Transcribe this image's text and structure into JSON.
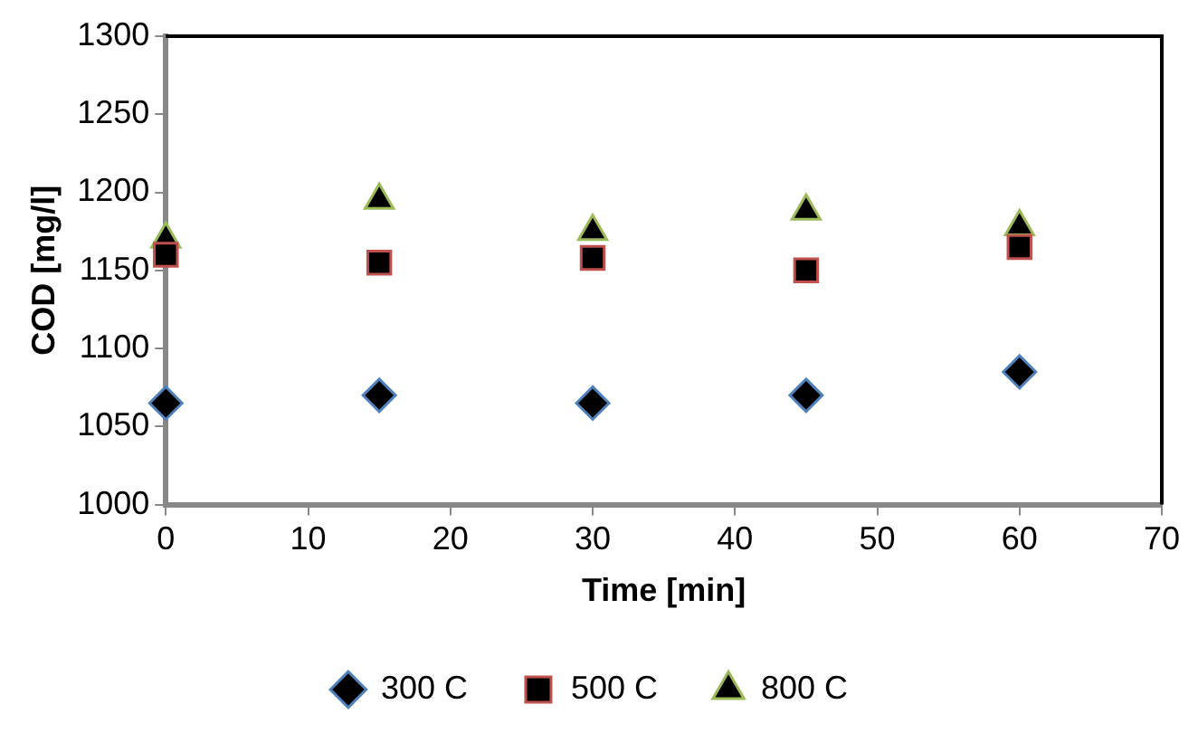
{
  "chart_data": {
    "type": "scatter",
    "xlabel": "Time [min]",
    "ylabel": "COD [mg/l]",
    "xlim": [
      0,
      70
    ],
    "xticks": [
      0,
      10,
      20,
      30,
      40,
      50,
      60,
      70
    ],
    "ylim": [
      1000,
      1300
    ],
    "yticks": [
      1000,
      1050,
      1100,
      1150,
      1200,
      1250,
      1300
    ],
    "grid": false,
    "legend": "bottom",
    "series": [
      {
        "name": "300 C",
        "color": "#4f81bd",
        "marker": "diamond",
        "x": [
          0,
          15,
          30,
          45,
          60
        ],
        "values": [
          1065,
          1070,
          1065,
          1070,
          1085
        ]
      },
      {
        "name": "500 C",
        "color": "#c0504d",
        "marker": "square",
        "x": [
          0,
          15,
          30,
          45,
          60
        ],
        "values": [
          1160,
          1155,
          1158,
          1150,
          1165
        ]
      },
      {
        "name": "800 C",
        "color": "#9bbb59",
        "marker": "triangle",
        "x": [
          0,
          15,
          30,
          45,
          60
        ],
        "values": [
          1170,
          1195,
          1175,
          1188,
          1178
        ]
      }
    ]
  }
}
